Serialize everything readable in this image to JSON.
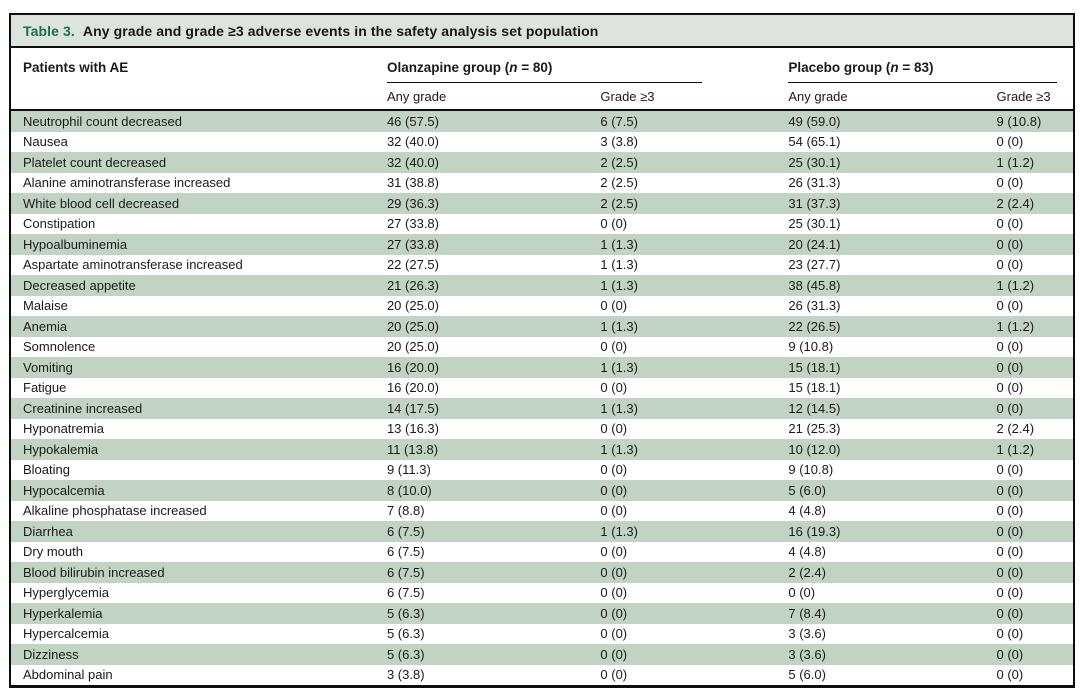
{
  "title_bar": {
    "label": "Table 3.",
    "text": "Any grade and grade ≥3 adverse events in the safety analysis set population"
  },
  "columns": {
    "row_header": "Patients with AE",
    "groups": [
      {
        "pre": "Olanzapine group (",
        "n": "n",
        "post": " = 80)",
        "sub": [
          "Any grade",
          "Grade ≥3"
        ]
      },
      {
        "pre": "Placebo group (",
        "n": "n",
        "post": " = 83)",
        "sub": [
          "Any grade",
          "Grade ≥3"
        ]
      }
    ]
  },
  "rows": [
    {
      "ae": "Neutrophil count decreased",
      "values": [
        "46 (57.5)",
        "6 (7.5)",
        "49 (59.0)",
        "9 (10.8)"
      ]
    },
    {
      "ae": "Nausea",
      "values": [
        "32 (40.0)",
        "3 (3.8)",
        "54 (65.1)",
        "0 (0)"
      ]
    },
    {
      "ae": "Platelet count decreased",
      "values": [
        "32 (40.0)",
        "2 (2.5)",
        "25 (30.1)",
        "1 (1.2)"
      ]
    },
    {
      "ae": "Alanine aminotransferase increased",
      "values": [
        "31 (38.8)",
        "2 (2.5)",
        "26 (31.3)",
        "0 (0)"
      ]
    },
    {
      "ae": "White blood cell decreased",
      "values": [
        "29 (36.3)",
        "2 (2.5)",
        "31 (37.3)",
        "2 (2.4)"
      ]
    },
    {
      "ae": "Constipation",
      "values": [
        "27 (33.8)",
        "0 (0)",
        "25 (30.1)",
        "0 (0)"
      ]
    },
    {
      "ae": "Hypoalbuminemia",
      "values": [
        "27 (33.8)",
        "1 (1.3)",
        "20 (24.1)",
        "0 (0)"
      ]
    },
    {
      "ae": "Aspartate aminotransferase increased",
      "values": [
        "22 (27.5)",
        "1 (1.3)",
        "23 (27.7)",
        "0 (0)"
      ]
    },
    {
      "ae": "Decreased appetite",
      "values": [
        "21 (26.3)",
        "1 (1.3)",
        "38 (45.8)",
        "1 (1.2)"
      ]
    },
    {
      "ae": "Malaise",
      "values": [
        "20 (25.0)",
        "0 (0)",
        "26 (31.3)",
        "0 (0)"
      ]
    },
    {
      "ae": "Anemia",
      "values": [
        "20 (25.0)",
        "1 (1.3)",
        "22 (26.5)",
        "1 (1.2)"
      ]
    },
    {
      "ae": "Somnolence",
      "values": [
        "20 (25.0)",
        "0 (0)",
        "9 (10.8)",
        "0 (0)"
      ]
    },
    {
      "ae": "Vomiting",
      "values": [
        "16 (20.0)",
        "1 (1.3)",
        "15 (18.1)",
        "0 (0)"
      ]
    },
    {
      "ae": "Fatigue",
      "values": [
        "16 (20.0)",
        "0 (0)",
        "15 (18.1)",
        "0 (0)"
      ]
    },
    {
      "ae": "Creatinine increased",
      "values": [
        "14 (17.5)",
        "1 (1.3)",
        "12 (14.5)",
        "0 (0)"
      ]
    },
    {
      "ae": "Hyponatremia",
      "values": [
        "13 (16.3)",
        "0 (0)",
        "21 (25.3)",
        "2 (2.4)"
      ]
    },
    {
      "ae": "Hypokalemia",
      "values": [
        "11 (13.8)",
        "1 (1.3)",
        "10 (12.0)",
        "1 (1.2)"
      ]
    },
    {
      "ae": "Bloating",
      "values": [
        "9 (11.3)",
        "0 (0)",
        "9 (10.8)",
        "0 (0)"
      ]
    },
    {
      "ae": "Hypocalcemia",
      "values": [
        "8 (10.0)",
        "0 (0)",
        "5 (6.0)",
        "0 (0)"
      ]
    },
    {
      "ae": "Alkaline phosphatase increased",
      "values": [
        "7 (8.8)",
        "0 (0)",
        "4 (4.8)",
        "0 (0)"
      ]
    },
    {
      "ae": "Diarrhea",
      "values": [
        "6 (7.5)",
        "1 (1.3)",
        "16 (19.3)",
        "0 (0)"
      ]
    },
    {
      "ae": "Dry mouth",
      "values": [
        "6 (7.5)",
        "0 (0)",
        "4 (4.8)",
        "0 (0)"
      ]
    },
    {
      "ae": "Blood bilirubin increased",
      "values": [
        "6 (7.5)",
        "0 (0)",
        "2 (2.4)",
        "0 (0)"
      ]
    },
    {
      "ae": "Hyperglycemia",
      "values": [
        "6 (7.5)",
        "0 (0)",
        "0 (0)",
        "0 (0)"
      ]
    },
    {
      "ae": "Hyperkalemia",
      "values": [
        "5 (6.3)",
        "0 (0)",
        "7 (8.4)",
        "0 (0)"
      ]
    },
    {
      "ae": "Hypercalcemia",
      "values": [
        "5 (6.3)",
        "0 (0)",
        "3 (3.6)",
        "0 (0)"
      ]
    },
    {
      "ae": "Dizziness",
      "values": [
        "5 (6.3)",
        "0 (0)",
        "3 (3.6)",
        "0 (0)"
      ]
    },
    {
      "ae": "Abdominal pain",
      "values": [
        "3 (3.8)",
        "0 (0)",
        "5 (6.0)",
        "0 (0)"
      ]
    }
  ],
  "colors": {
    "table_label_green": "#1d6f53",
    "row_stripe_green": "#c1d3c3",
    "title_bar_background": "#dde4dd",
    "border_black": "#0d0d0d"
  }
}
